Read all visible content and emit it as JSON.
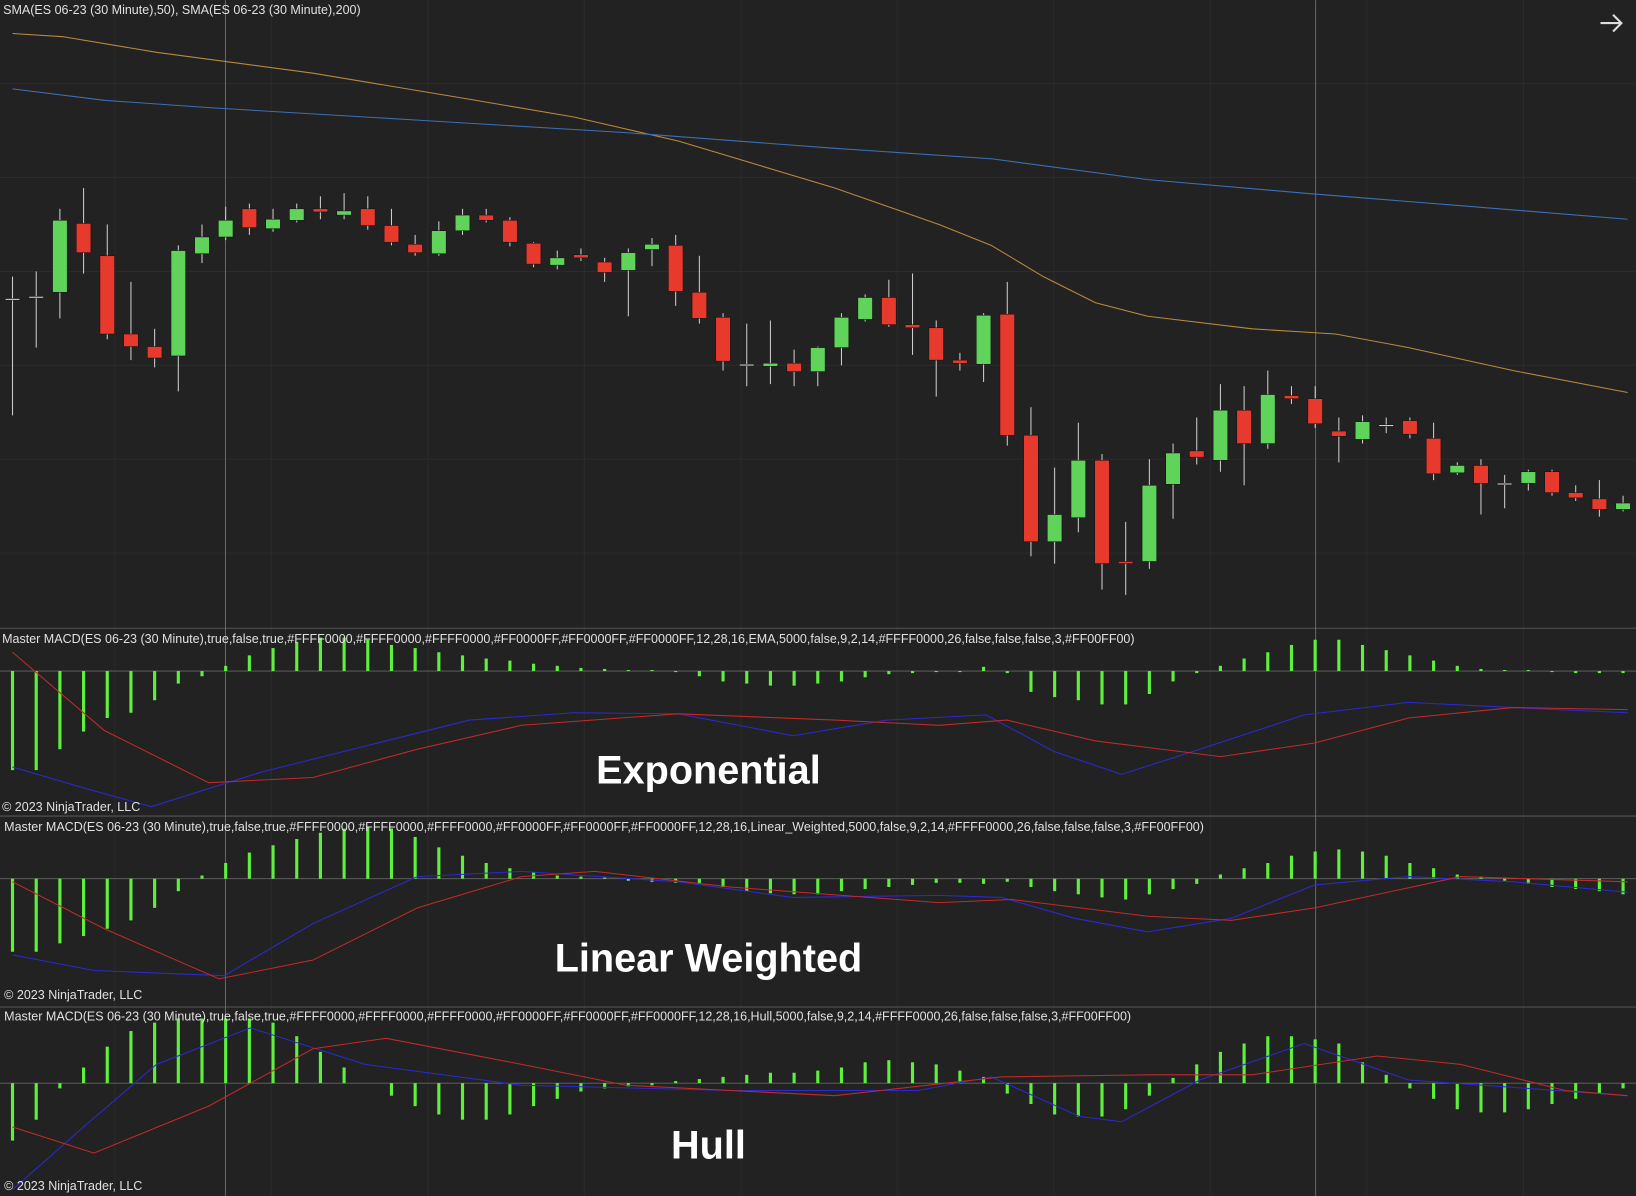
{
  "price_panel": {
    "label": "SMA(ES 06-23 (30 Minute),50), SMA(ES 06-23 (30 Minute),200)"
  },
  "panels": [
    {
      "label": "Master MACD(ES 06-23 (30 Minute),true,false,true,#FFFF0000,#FFFF0000,#FFFF0000,#FF0000FF,#FF0000FF,#FF0000FF,12,28,16,EMA,5000,false,9,2,14,#FFFF0000,26,false,false,false,3,#FF00FF00)",
      "title": "Exponential",
      "copyright": "© 2023 NinjaTrader, LLC"
    },
    {
      "label": "Master MACD(ES 06-23 (30 Minute),true,false,true,#FFFF0000,#FFFF0000,#FFFF0000,#FF0000FF,#FF0000FF,#FF0000FF,12,28,16,Linear_Weighted,5000,false,9,2,14,#FFFF0000,26,false,false,false,3,#FF00FF00)",
      "title": "Linear Weighted",
      "copyright": "© 2023 NinjaTrader, LLC"
    },
    {
      "label": "Master MACD(ES 06-23 (30 Minute),true,false,true,#FFFF0000,#FFFF0000,#FFFF0000,#FF0000FF,#FF0000FF,#FF0000FF,12,28,16,Hull,5000,false,9,2,14,#FFFF0000,26,false,false,false,3,#FF00FF00)",
      "title": "Hull",
      "copyright": "© 2023 NinjaTrader, LLC"
    }
  ]
}
